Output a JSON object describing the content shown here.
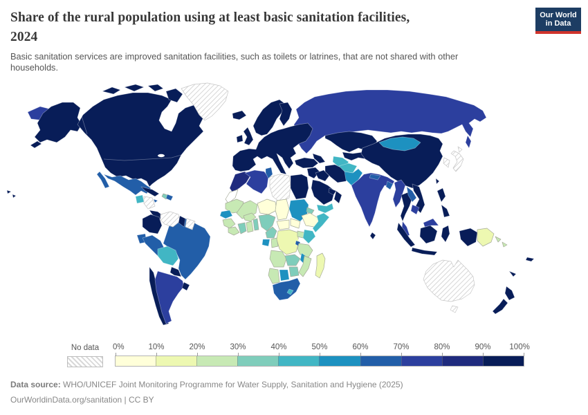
{
  "header": {
    "title_line1": "Share of the rural population using at least basic sanitation facilities,",
    "title_line2": "2024",
    "subtitle_line1": "Basic sanitation services are improved sanitation facilities, such as toilets or latrines, that are not shared with other",
    "subtitle_line2": "households."
  },
  "logo": {
    "line1": "Our World",
    "line2": "in Data",
    "bg_color": "#1d3d63",
    "accent_color": "#d0342c"
  },
  "legend": {
    "no_data_label": "No data",
    "tick_labels": [
      "0%",
      "10%",
      "20%",
      "30%",
      "40%",
      "50%",
      "60%",
      "70%",
      "80%",
      "90%",
      "100%"
    ],
    "bins": [
      {
        "label": "0-10%",
        "color": "#ffffd9"
      },
      {
        "label": "10-20%",
        "color": "#edf8b1"
      },
      {
        "label": "20-30%",
        "color": "#c7e9b4"
      },
      {
        "label": "30-40%",
        "color": "#7fcdbb"
      },
      {
        "label": "40-50%",
        "color": "#41b6c4"
      },
      {
        "label": "50-60%",
        "color": "#1d91c0"
      },
      {
        "label": "60-70%",
        "color": "#225ea8"
      },
      {
        "label": "70-80%",
        "color": "#2c3f9e"
      },
      {
        "label": "80-90%",
        "color": "#1f2b7e"
      },
      {
        "label": "90-100%",
        "color": "#081d58"
      }
    ]
  },
  "footer": {
    "source_label": "Data source:",
    "source_text": " WHO/UNICEF Joint Monitoring Programme for Water Supply, Sanitation and Hygiene (2025)",
    "license_text": "OurWorldinData.org/sanitation | CC BY"
  },
  "chart_data": {
    "type": "choropleth_map",
    "title": "Share of the rural population using at least basic sanitation facilities, 2024",
    "unit": "% of rural population",
    "legend_bins": [
      "0-10%",
      "10-20%",
      "20-30%",
      "30-40%",
      "40-50%",
      "50-60%",
      "60-70%",
      "70-80%",
      "80-90%",
      "90-100%",
      "No data"
    ],
    "regions": [
      {
        "id": "russia",
        "name": "Russia",
        "bin": "70-80%"
      },
      {
        "id": "canada-usa",
        "name": "Canada / United States",
        "bin": "90-100%"
      },
      {
        "id": "greenland",
        "name": "Greenland",
        "bin": "No data"
      },
      {
        "id": "mexico",
        "name": "Mexico",
        "bin": "60-70%"
      },
      {
        "id": "guatemala",
        "name": "Guatemala",
        "bin": "40-50%"
      },
      {
        "id": "honduras-nicaragua",
        "name": "Honduras / Nicaragua",
        "bin": "No data"
      },
      {
        "id": "costa-rica-panama",
        "name": "Costa Rica / Panama",
        "bin": "90-100%"
      },
      {
        "id": "cuba",
        "name": "Cuba",
        "bin": "90-100%"
      },
      {
        "id": "jamaica",
        "name": "Jamaica",
        "bin": "60-70%"
      },
      {
        "id": "haiti",
        "name": "Haiti",
        "bin": "30-40%"
      },
      {
        "id": "dominican-republic",
        "name": "Dominican Republic",
        "bin": "60-70%"
      },
      {
        "id": "venezuela",
        "name": "Venezuela",
        "bin": "No data"
      },
      {
        "id": "guyana",
        "name": "Guyana",
        "bin": "90-100%"
      },
      {
        "id": "suriname-french-guiana",
        "name": "Suriname / French Guiana",
        "bin": "No data"
      },
      {
        "id": "colombia",
        "name": "Colombia",
        "bin": "90-100%"
      },
      {
        "id": "ecuador",
        "name": "Ecuador",
        "bin": "60-70%"
      },
      {
        "id": "peru",
        "name": "Peru",
        "bin": "60-70%"
      },
      {
        "id": "brazil",
        "name": "Brazil",
        "bin": "60-70%"
      },
      {
        "id": "bolivia",
        "name": "Bolivia",
        "bin": "40-50%"
      },
      {
        "id": "paraguay",
        "name": "Paraguay",
        "bin": "90-100%"
      },
      {
        "id": "chile",
        "name": "Chile",
        "bin": "90-100%"
      },
      {
        "id": "argentina",
        "name": "Argentina",
        "bin": "70-80%"
      },
      {
        "id": "uruguay",
        "name": "Uruguay",
        "bin": "90-100%"
      },
      {
        "id": "europe",
        "name": "Europe (most countries)",
        "bin": "90-100%"
      },
      {
        "id": "turkey",
        "name": "Turkey",
        "bin": "90-100%"
      },
      {
        "id": "caucasus",
        "name": "Caucasus countries",
        "bin": "90-100%"
      },
      {
        "id": "kazakhstan",
        "name": "Kazakhstan",
        "bin": "90-100%"
      },
      {
        "id": "central-asia",
        "name": "Uzbekistan / Kyrgyzstan / Tajikistan",
        "bin": "90-100%"
      },
      {
        "id": "turkmenistan",
        "name": "Turkmenistan",
        "bin": "40-50%"
      },
      {
        "id": "china",
        "name": "China",
        "bin": "90-100%"
      },
      {
        "id": "mongolia",
        "name": "Mongolia",
        "bin": "50-60%"
      },
      {
        "id": "korea",
        "name": "Korea",
        "bin": "No data"
      },
      {
        "id": "japan",
        "name": "Japan",
        "bin": "No data"
      },
      {
        "id": "taiwan",
        "name": "Taiwan",
        "bin": "90-100%"
      },
      {
        "id": "afghanistan",
        "name": "Afghanistan",
        "bin": "40-50%"
      },
      {
        "id": "pakistan",
        "name": "Pakistan",
        "bin": "50-60%"
      },
      {
        "id": "india",
        "name": "India",
        "bin": "70-80%"
      },
      {
        "id": "nepal",
        "name": "Nepal",
        "bin": "60-70%"
      },
      {
        "id": "bangladesh",
        "name": "Bangladesh",
        "bin": "60-70%"
      },
      {
        "id": "sri-lanka",
        "name": "Sri Lanka",
        "bin": "90-100%"
      },
      {
        "id": "myanmar",
        "name": "Myanmar",
        "bin": "70-80%"
      },
      {
        "id": "thailand",
        "name": "Thailand",
        "bin": "90-100%"
      },
      {
        "id": "laos",
        "name": "Laos",
        "bin": "60-70%"
      },
      {
        "id": "vietnam",
        "name": "Vietnam",
        "bin": "90-100%"
      },
      {
        "id": "cambodia",
        "name": "Cambodia",
        "bin": "70-80%"
      },
      {
        "id": "malaysia",
        "name": "Malaysia",
        "bin": "70-80%"
      },
      {
        "id": "indonesia",
        "name": "Indonesia",
        "bin": "90-100%"
      },
      {
        "id": "philippines",
        "name": "Philippines",
        "bin": "90-100%"
      },
      {
        "id": "papua-new-guinea",
        "name": "Papua New Guinea",
        "bin": "10-20%"
      },
      {
        "id": "solomon-islands",
        "name": "Solomon Islands",
        "bin": "20-30%"
      },
      {
        "id": "fiji",
        "name": "Fiji",
        "bin": "90-100%"
      },
      {
        "id": "new-caledonia",
        "name": "New Caledonia",
        "bin": "90-100%"
      },
      {
        "id": "australia",
        "name": "Australia",
        "bin": "No data"
      },
      {
        "id": "new-zealand",
        "name": "New Zealand",
        "bin": "90-100%"
      },
      {
        "id": "morocco",
        "name": "Morocco",
        "bin": "80-90%"
      },
      {
        "id": "western-sahara",
        "name": "Western Sahara",
        "bin": "No data",
        "color": "#ffffff"
      },
      {
        "id": "algeria",
        "name": "Algeria",
        "bin": "70-80%"
      },
      {
        "id": "tunisia",
        "name": "Tunisia",
        "bin": "60-70%"
      },
      {
        "id": "libya",
        "name": "Libya",
        "bin": "No data"
      },
      {
        "id": "egypt",
        "name": "Egypt",
        "bin": "90-100%"
      },
      {
        "id": "mauritania",
        "name": "Mauritania",
        "bin": "20-30%"
      },
      {
        "id": "senegal",
        "name": "Senegal",
        "bin": "50-60%"
      },
      {
        "id": "guinea",
        "name": "Guinea",
        "bin": "20-30%"
      },
      {
        "id": "sierra-leone-liberia",
        "name": "Sierra Leone / Liberia",
        "bin": "20-30%"
      },
      {
        "id": "mali",
        "name": "Mali",
        "bin": "20-30%"
      },
      {
        "id": "burkina-faso",
        "name": "Burkina Faso",
        "bin": "20-30%"
      },
      {
        "id": "ivory-coast",
        "name": "Cote d'Ivoire",
        "bin": "30-40%"
      },
      {
        "id": "ghana",
        "name": "Ghana",
        "bin": "20-30%"
      },
      {
        "id": "togo-benin",
        "name": "Togo / Benin",
        "bin": "30-40%"
      },
      {
        "id": "niger",
        "name": "Niger",
        "bin": "0-10%"
      },
      {
        "id": "nigeria",
        "name": "Nigeria",
        "bin": "30-40%"
      },
      {
        "id": "chad",
        "name": "Chad",
        "bin": "0-10%"
      },
      {
        "id": "sudan",
        "name": "Sudan",
        "bin": "50-60%"
      },
      {
        "id": "eritrea",
        "name": "Eritrea",
        "bin": "30-40%"
      },
      {
        "id": "ethiopia",
        "name": "Ethiopia",
        "bin": "0-10%"
      },
      {
        "id": "somalia",
        "name": "Somalia",
        "bin": "40-50%"
      },
      {
        "id": "south-sudan",
        "name": "South Sudan",
        "bin": "0-10%"
      },
      {
        "id": "central-african-republic",
        "name": "Central African Republic",
        "bin": "0-10%"
      },
      {
        "id": "cameroon",
        "name": "Cameroon",
        "bin": "30-40%"
      },
      {
        "id": "gabon",
        "name": "Gabon",
        "bin": "50-60%"
      },
      {
        "id": "congo",
        "name": "Congo",
        "bin": "20-30%"
      },
      {
        "id": "drc",
        "name": "Democratic Republic of Congo",
        "bin": "10-20%"
      },
      {
        "id": "uganda",
        "name": "Uganda",
        "bin": "20-30%"
      },
      {
        "id": "kenya",
        "name": "Kenya",
        "bin": "40-50%"
      },
      {
        "id": "rwanda-burundi",
        "name": "Rwanda / Burundi",
        "bin": "60-70%"
      },
      {
        "id": "tanzania",
        "name": "Tanzania",
        "bin": "20-30%"
      },
      {
        "id": "angola",
        "name": "Angola",
        "bin": "20-30%"
      },
      {
        "id": "zambia",
        "name": "Zambia",
        "bin": "30-40%"
      },
      {
        "id": "malawi",
        "name": "Malawi",
        "bin": "50-60%"
      },
      {
        "id": "mozambique",
        "name": "Mozambique",
        "bin": "20-30%"
      },
      {
        "id": "zimbabwe",
        "name": "Zimbabwe",
        "bin": "30-40%"
      },
      {
        "id": "botswana",
        "name": "Botswana",
        "bin": "50-60%"
      },
      {
        "id": "namibia",
        "name": "Namibia",
        "bin": "20-30%"
      },
      {
        "id": "south-africa",
        "name": "South Africa",
        "bin": "60-70%"
      },
      {
        "id": "lesotho",
        "name": "Lesotho",
        "bin": "40-50%"
      },
      {
        "id": "madagascar",
        "name": "Madagascar",
        "bin": "10-20%"
      },
      {
        "id": "syria-jordan-israel",
        "name": "Syria / Jordan / Israel",
        "bin": "90-100%"
      },
      {
        "id": "iraq",
        "name": "Iraq",
        "bin": "90-100%"
      },
      {
        "id": "iran",
        "name": "Iran",
        "bin": "90-100%"
      },
      {
        "id": "saudi-arabia",
        "name": "Saudi Arabia",
        "bin": "90-100%"
      },
      {
        "id": "yemen",
        "name": "Yemen",
        "bin": "40-50%"
      },
      {
        "id": "oman",
        "name": "Oman",
        "bin": "90-100%"
      },
      {
        "id": "uae-qatar",
        "name": "United Arab Emirates / Qatar",
        "bin": "90-100%"
      }
    ]
  }
}
